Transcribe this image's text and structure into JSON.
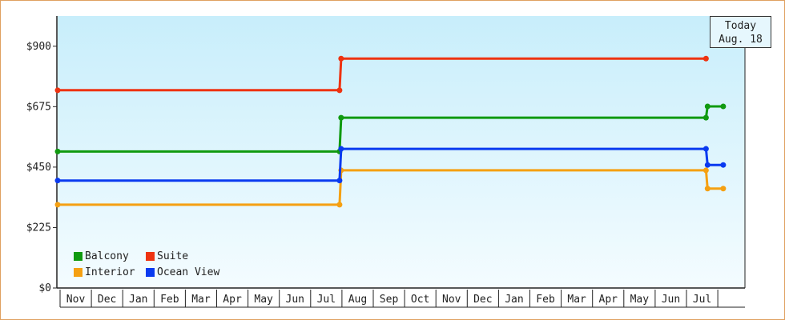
{
  "chart_data": {
    "type": "line",
    "step": true,
    "ylim": [
      0,
      1012.5
    ],
    "y_ticks": [
      0,
      225,
      450,
      675,
      900
    ],
    "y_tick_labels": [
      "$0",
      "$225",
      "$450",
      "$675",
      "$900"
    ],
    "x_tick_labels": [
      "Nov",
      "Dec",
      "Jan",
      "Feb",
      "Mar",
      "Apr",
      "May",
      "Jun",
      "Jul",
      "Aug",
      "Sep",
      "Oct",
      "Nov",
      "Dec",
      "Jan",
      "Feb",
      "Mar",
      "Apr",
      "May",
      "Jun",
      "Jul"
    ],
    "series": [
      {
        "name": "Balcony",
        "color": "#109a10",
        "points": [
          [
            0,
            508
          ],
          [
            9.0,
            508
          ],
          [
            9.05,
            634
          ],
          [
            20.7,
            634
          ],
          [
            20.75,
            676
          ],
          [
            21.25,
            676
          ]
        ]
      },
      {
        "name": "Suite",
        "color": "#ee3311",
        "points": [
          [
            0,
            736
          ],
          [
            9.0,
            736
          ],
          [
            9.05,
            854
          ],
          [
            20.7,
            854
          ]
        ]
      },
      {
        "name": "Interior",
        "color": "#f5a012",
        "points": [
          [
            0,
            310
          ],
          [
            9.0,
            310
          ],
          [
            9.05,
            438
          ],
          [
            20.7,
            438
          ],
          [
            20.75,
            370
          ],
          [
            21.25,
            370
          ]
        ]
      },
      {
        "name": "Ocean View",
        "color": "#0a3af0",
        "points": [
          [
            0,
            400
          ],
          [
            9.0,
            400
          ],
          [
            9.05,
            518
          ],
          [
            20.7,
            518
          ],
          [
            20.75,
            458
          ],
          [
            21.25,
            458
          ]
        ]
      }
    ],
    "legend_position": "bottom-left",
    "grid": false,
    "annotation": {
      "line1": "Today",
      "line2": "Aug. 18",
      "x": 21.25
    }
  }
}
